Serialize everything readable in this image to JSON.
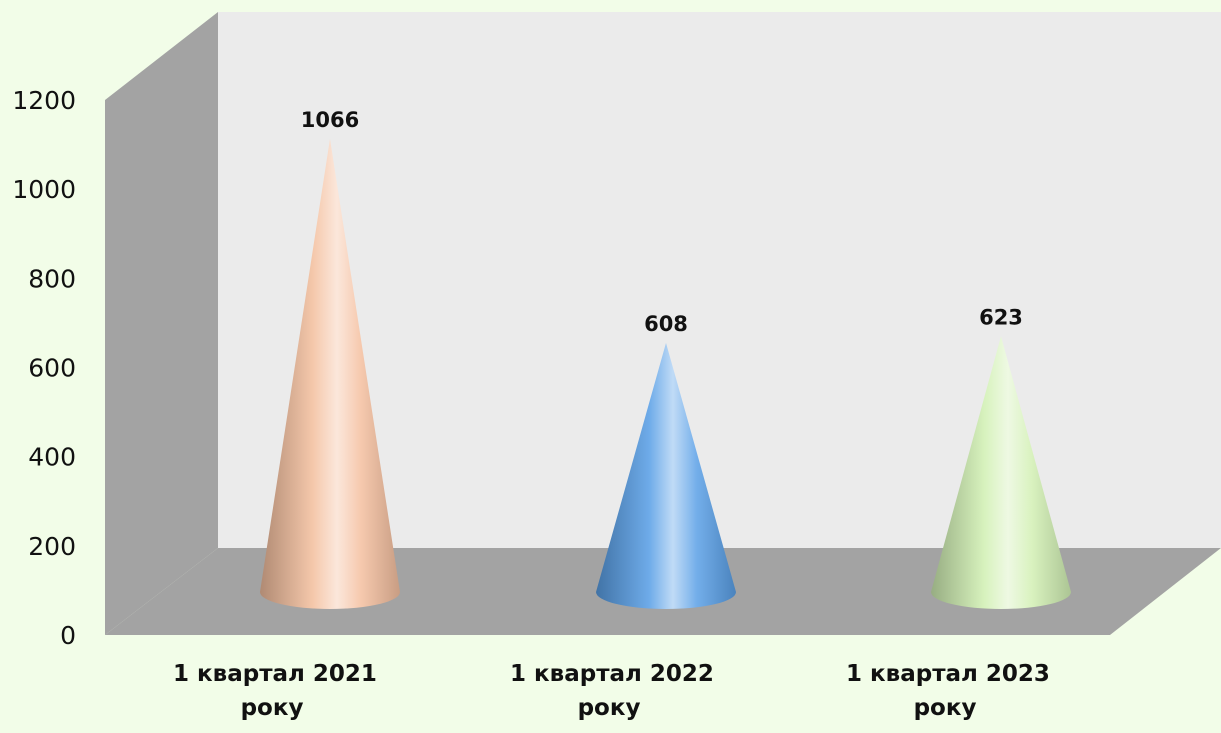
{
  "chart_data": {
    "type": "bar",
    "bar_shape": "cone",
    "style": "3d",
    "categories": [
      {
        "line1": "1 квартал  2021",
        "line2": "року"
      },
      {
        "line1": "1 квартал  2022",
        "line2": "року"
      },
      {
        "line1": "1 квартал  2023",
        "line2": "року"
      }
    ],
    "values": [
      1066,
      608,
      623
    ],
    "data_labels": [
      "1066",
      "608",
      "623"
    ],
    "colors": [
      "#f4c0a0",
      "#5aa0e6",
      "#d2f0b4"
    ],
    "ylim": [
      0,
      1200
    ],
    "yticks": [
      "0",
      "200",
      "400",
      "600",
      "800",
      "1000",
      "1200"
    ],
    "grid": false,
    "legend": "none",
    "title": "",
    "xlabel": "",
    "ylabel": ""
  }
}
